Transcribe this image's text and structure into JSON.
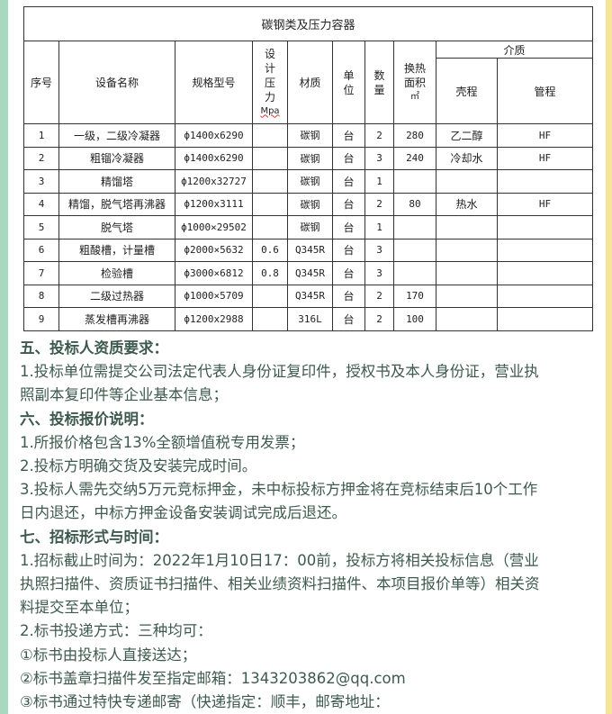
{
  "table": {
    "title": "碳钢类及压力容器",
    "headers": {
      "no": "序号",
      "name": "设备名称",
      "spec": "规格型号",
      "pressure": [
        "设",
        "计",
        "压",
        "力",
        "Mpa"
      ],
      "material": "材质",
      "unit": [
        "单",
        "位"
      ],
      "qty": [
        "数",
        "量"
      ],
      "area": [
        "换热",
        "面积",
        "㎡"
      ],
      "medium": "介质",
      "shell": "壳程",
      "tube": "管程"
    },
    "rows": [
      {
        "no": "1",
        "name": "一级，二级冷凝器",
        "spec": "ϕ1400x6290",
        "pressure": "",
        "material": "碳钢",
        "unit": "台",
        "qty": "2",
        "area": "280",
        "shell": "乙二醇",
        "tube": "HF"
      },
      {
        "no": "2",
        "name": "粗镏冷凝器",
        "spec": "ϕ1400x6290",
        "pressure": "",
        "material": "碳钢",
        "unit": "台",
        "qty": "3",
        "area": "240",
        "shell": "冷却水",
        "tube": "HF"
      },
      {
        "no": "3",
        "name": "精馏塔",
        "spec": "ϕ1200x32727",
        "pressure": "",
        "material": "碳钢",
        "unit": "台",
        "qty": "1",
        "area": "",
        "shell": "",
        "tube": ""
      },
      {
        "no": "4",
        "name": "精馏，脱气塔再沸器",
        "spec": "ϕ1200x3111",
        "pressure": "",
        "material": "碳钢",
        "unit": "台",
        "qty": "2",
        "area": "80",
        "shell": "热水",
        "tube": "HF"
      },
      {
        "no": "5",
        "name": "脱气塔",
        "spec": "ϕ1000×29502",
        "pressure": "",
        "material": "碳钢",
        "unit": "台",
        "qty": "1",
        "area": "",
        "shell": "",
        "tube": ""
      },
      {
        "no": "6",
        "name": "粗酸槽，计量槽",
        "spec": "ϕ2000×5632",
        "pressure": "0.6",
        "material": "Q345R",
        "unit": "台",
        "qty": "3",
        "area": "",
        "shell": "",
        "tube": ""
      },
      {
        "no": "7",
        "name": "检验槽",
        "spec": "ϕ3000×6812",
        "pressure": "0.8",
        "material": "Q345R",
        "unit": "台",
        "qty": "3",
        "area": "",
        "shell": "",
        "tube": ""
      },
      {
        "no": "8",
        "name": "二级过热器",
        "spec": "ϕ1000×5709",
        "pressure": "",
        "material": "Q345R",
        "unit": "台",
        "qty": "2",
        "area": "170",
        "shell": "",
        "tube": ""
      },
      {
        "no": "9",
        "name": "蒸发槽再沸器",
        "spec": "ϕ1200x2988",
        "pressure": "",
        "material": "316L",
        "unit": "台",
        "qty": "2",
        "area": "100",
        "shell": "",
        "tube": ""
      }
    ]
  },
  "sections": [
    {
      "heading": "五、投标人资质要求：",
      "lines": [
        "1.投标单位需提交公司法定代表人身份证复印件，授权书及本人身份证，营业执",
        "照副本复印件等企业基本信息；"
      ]
    },
    {
      "heading": "六、投标报价说明：",
      "lines": [
        "1.所报价格包含13%全额增值税专用发票；",
        "2.投标方明确交货及安装完成时间。",
        "3.投标人需先交纳5万元竞标押金，未中标投标方押金将在竞标结束后10个工作",
        "日内退还，中标方押金设备安装调试完成后退还。"
      ]
    },
    {
      "heading": "七、招标形式与时间：",
      "lines": [
        "1.招标截止时间为：2022年1月10日17：00前，投标方将相关投标信息（营业",
        "执照扫描件、资质证书扫描件、相关业绩资料扫描件、本项目报价单等）相关资",
        "料提交至本单位；",
        "2.标书投递方式：三种均可：",
        "①标书由投标人直接送达；",
        "②标书盖章扫描件发至指定邮箱：1343203862@qq.com",
        "③标书通过特快专递邮寄（快递指定：顺丰，邮寄地址："
      ]
    }
  ],
  "colors": {
    "text": "#3e5a4e",
    "left_bar": "#a8d8c0",
    "right_bar": "#f6e49a"
  }
}
